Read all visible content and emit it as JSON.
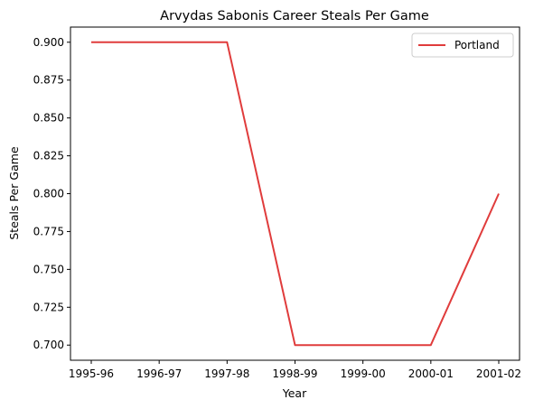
{
  "chart_data": {
    "type": "line",
    "title": "Arvydas Sabonis Career Steals Per Game",
    "xlabel": "Year",
    "ylabel": "Steals Per Game",
    "categories": [
      "1995-96",
      "1996-97",
      "1997-98",
      "1998-99",
      "1999-00",
      "2000-01",
      "2001-02"
    ],
    "series": [
      {
        "name": "Portland",
        "x": [
          "1995-96",
          "1997-98",
          "1998-99",
          "2000-01",
          "2001-02"
        ],
        "values": [
          0.9,
          0.9,
          0.7,
          0.7,
          0.8
        ],
        "color": "#e03c3c"
      }
    ],
    "ylim": [
      0.69,
      0.91
    ],
    "yticks": [
      "0.700",
      "0.725",
      "0.750",
      "0.775",
      "0.800",
      "0.825",
      "0.850",
      "0.875",
      "0.900"
    ],
    "grid": false,
    "legend_position": "top-right"
  }
}
